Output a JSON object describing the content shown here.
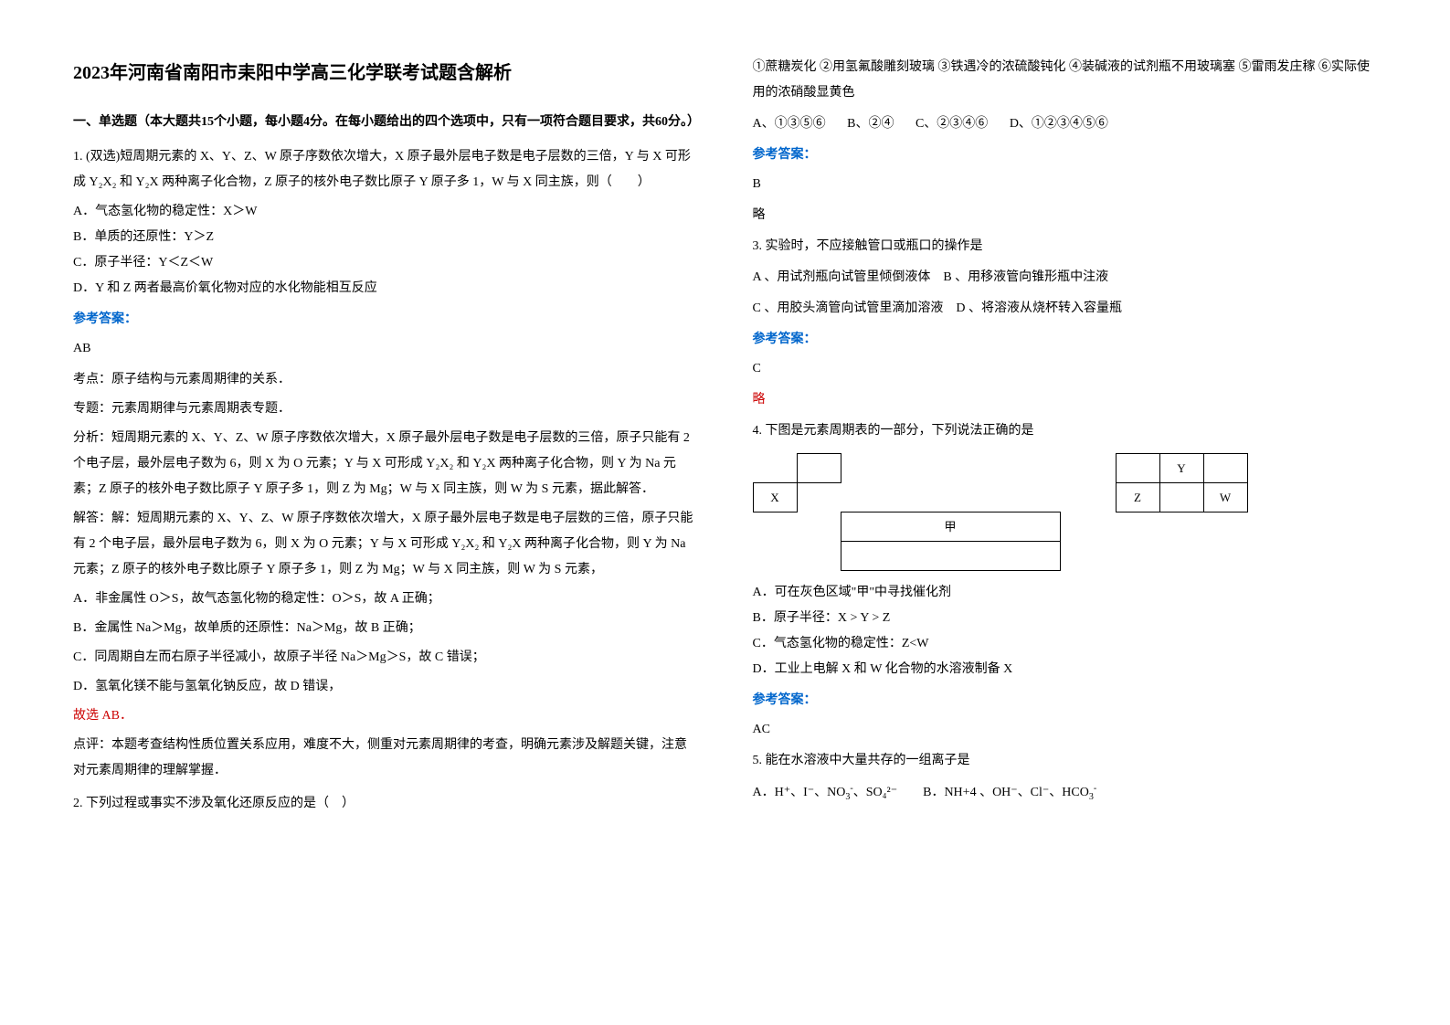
{
  "title": "2023年河南省南阳市耒阳中学高三化学联考试题含解析",
  "section_header": "一、单选题（本大题共15个小题，每小题4分。在每小题给出的四个选项中，只有一项符合题目要求，共60分。）",
  "q1": {
    "stem": "1. (双选)短周期元素的 X、Y、Z、W 原子序数依次增大，X 原子最外层电子数是电子层数的三倍，Y 与 X 可形成 Y₂X₂ 和 Y₂X 两种离子化合物，Z 原子的核外电子数比原子 Y 原子多 1，W 与 X 同主族，则（　　）",
    "optA": "A．气态氢化物的稳定性：X＞W",
    "optB": "B．单质的还原性：Y＞Z",
    "optC": "C．原子半径：Y＜Z＜W",
    "optD": "D．Y 和 Z 两者最高价氧化物对应的水化物能相互反应",
    "ans_label": "参考答案：",
    "ans": "AB",
    "a1": "考点：原子结构与元素周期律的关系．",
    "a2": "专题：元素周期律与元素周期表专题．",
    "a3": "分析：短周期元素的 X、Y、Z、W 原子序数依次增大，X 原子最外层电子数是电子层数的三倍，原子只能有 2 个电子层，最外层电子数为 6，则 X 为 O 元素；Y 与 X 可形成 Y₂X₂ 和 Y₂X 两种离子化合物，则 Y 为 Na 元素；Z 原子的核外电子数比原子 Y 原子多 1，则 Z 为 Mg；W 与 X 同主族，则 W 为 S 元素，据此解答．",
    "a4": "解答：解：短周期元素的 X、Y、Z、W 原子序数依次增大，X 原子最外层电子数是电子层数的三倍，原子只能有 2 个电子层，最外层电子数为 6，则 X 为 O 元素；Y 与 X 可形成 Y₂X₂ 和 Y₂X 两种离子化合物，则 Y 为 Na 元素；Z 原子的核外电子数比原子 Y 原子多 1，则 Z 为 Mg；W 与 X 同主族，则 W 为 S 元素，",
    "a5": "A．非金属性 O＞S，故气态氢化物的稳定性：O＞S，故 A 正确；",
    "a6": "B．金属性 Na＞Mg，故单质的还原性：Na＞Mg，故 B 正确；",
    "a7": "C．同周期自左而右原子半径减小，故原子半径 Na＞Mg＞S，故 C 错误；",
    "a8": "D．氢氧化镁不能与氢氧化钠反应，故 D 错误，",
    "a9": "故选 AB．",
    "a10": "点评：本题考查结构性质位置关系应用，难度不大，侧重对元素周期律的考查，明确元素涉及解题关键，注意对元素周期律的理解掌握．"
  },
  "q2": {
    "stem": "2. 下列过程或事实不涉及氧化还原反应的是（　）",
    "desc": "①蔗糖炭化 ②用氢氟酸雕刻玻璃 ③铁遇冷的浓硫酸钝化 ④装碱液的试剂瓶不用玻璃塞 ⑤雷雨发庄稼 ⑥实际使用的浓硝酸显黄色",
    "optA": "A、①③⑤⑥",
    "optB": "B、②④",
    "optC": "C、②③④⑥",
    "optD": "D、①②③④⑤⑥",
    "ans_label": "参考答案：",
    "ans": "B",
    "brief": "略"
  },
  "q3": {
    "stem": "3. 实验时，不应接触管口或瓶口的操作是",
    "optAB": "A 、用试剂瓶向试管里倾倒液体　B 、用移液管向锥形瓶中注液",
    "optCD": "C 、用胶头滴管向试管里滴加溶液　D 、将溶液从烧杯转入容量瓶",
    "ans_label": "参考答案：",
    "ans": "C",
    "brief": "略"
  },
  "q4": {
    "stem": "4. 下图是元素周期表的一部分，下列说法正确的是",
    "table1": {
      "r1c2_blank": "",
      "r2c1": "X",
      "r3c3": "甲"
    },
    "table2": {
      "r1c2": "Y",
      "r2c1": "Z",
      "r2c3": "W"
    },
    "optA": "A．可在灰色区域\"甲\"中寻找催化剂",
    "optB": "B．原子半径：X > Y > Z",
    "optC": "C．气态氢化物的稳定性：Z<W",
    "optD": "D．工业上电解 X 和 W 化合物的水溶液制备 X",
    "ans_label": "参考答案：",
    "ans": "AC"
  },
  "q5": {
    "stem": "5. 能在水溶液中大量共存的一组离子是",
    "optA_prefix": "A．H⁺、I⁻、NO",
    "optA_sub": "3",
    "optA_mid": "、SO₄²⁻",
    "optB_prefix": "B．NH+4 、OH⁻、Cl⁻、HCO",
    "optB_sub": "3"
  },
  "labels": {
    "answer": "参考答案："
  }
}
